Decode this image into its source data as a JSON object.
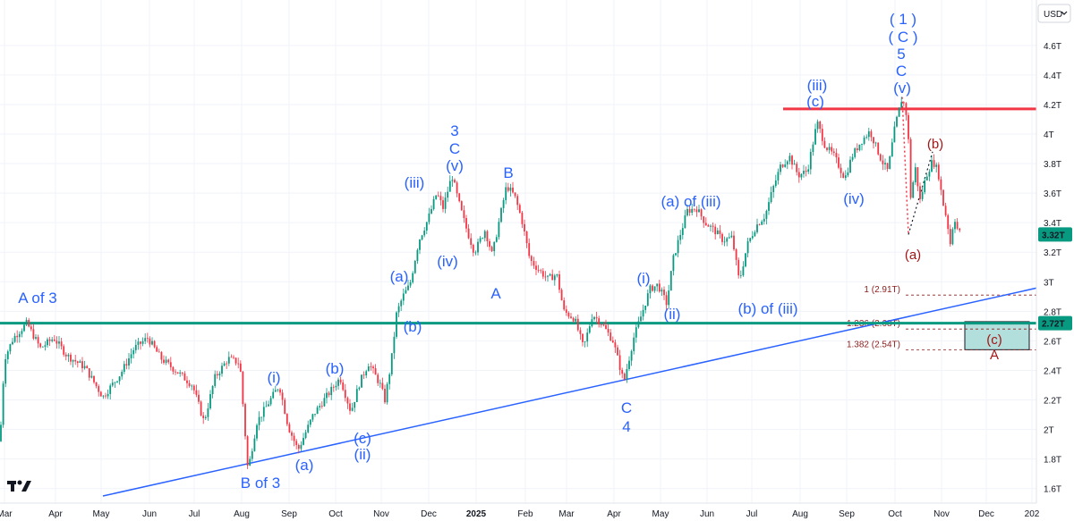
{
  "header": {
    "currency": "USD"
  },
  "chart_data": {
    "type": "candlestick",
    "y_axis": {
      "ticks": [
        "4.6T",
        "4.4T",
        "4.2T",
        "4T",
        "3.8T",
        "3.6T",
        "3.4T",
        "3.2T",
        "3T",
        "2.8T",
        "2.6T",
        "2.4T",
        "2.2T",
        "2T",
        "1.8T",
        "1.6T"
      ],
      "range": [
        1.55,
        4.75
      ],
      "scale": "linear"
    },
    "x_axis": {
      "ticks": [
        "Mar",
        "Apr",
        "May",
        "Jun",
        "Jul",
        "Aug",
        "Sep",
        "Oct",
        "Nov",
        "Dec",
        "2025",
        "Feb",
        "Mar",
        "Apr",
        "May",
        "Jun",
        "Jul",
        "Aug",
        "Sep",
        "Oct",
        "Nov",
        "Dec",
        "202"
      ]
    },
    "price_path": [
      [
        0,
        1.92
      ],
      [
        5,
        2.48
      ],
      [
        15,
        2.62
      ],
      [
        30,
        2.72
      ],
      [
        45,
        2.55
      ],
      [
        60,
        2.62
      ],
      [
        75,
        2.5
      ],
      [
        95,
        2.42
      ],
      [
        115,
        2.22
      ],
      [
        135,
        2.38
      ],
      [
        150,
        2.55
      ],
      [
        165,
        2.62
      ],
      [
        180,
        2.48
      ],
      [
        200,
        2.38
      ],
      [
        215,
        2.3
      ],
      [
        228,
        2.05
      ],
      [
        240,
        2.35
      ],
      [
        255,
        2.48
      ],
      [
        268,
        2.45
      ],
      [
        277,
        1.72
      ],
      [
        287,
        2.05
      ],
      [
        300,
        2.18
      ],
      [
        312,
        2.3
      ],
      [
        322,
        2.02
      ],
      [
        333,
        1.86
      ],
      [
        350,
        2.1
      ],
      [
        368,
        2.25
      ],
      [
        380,
        2.35
      ],
      [
        392,
        2.12
      ],
      [
        402,
        2.32
      ],
      [
        412,
        2.45
      ],
      [
        425,
        2.3
      ],
      [
        430,
        2.2
      ],
      [
        437,
        2.45
      ],
      [
        443,
        2.78
      ],
      [
        450,
        2.9
      ],
      [
        458,
        2.98
      ],
      [
        468,
        3.28
      ],
      [
        478,
        3.42
      ],
      [
        488,
        3.6
      ],
      [
        495,
        3.5
      ],
      [
        505,
        3.72
      ],
      [
        512,
        3.55
      ],
      [
        520,
        3.38
      ],
      [
        530,
        3.2
      ],
      [
        542,
        3.35
      ],
      [
        550,
        3.18
      ],
      [
        558,
        3.42
      ],
      [
        566,
        3.65
      ],
      [
        575,
        3.58
      ],
      [
        583,
        3.42
      ],
      [
        592,
        3.15
      ],
      [
        602,
        3.08
      ],
      [
        612,
        3.02
      ],
      [
        622,
        3.05
      ],
      [
        630,
        2.8
      ],
      [
        642,
        2.75
      ],
      [
        652,
        2.55
      ],
      [
        662,
        2.78
      ],
      [
        672,
        2.72
      ],
      [
        685,
        2.6
      ],
      [
        697,
        2.32
      ],
      [
        708,
        2.62
      ],
      [
        718,
        2.8
      ],
      [
        726,
        2.95
      ],
      [
        735,
        2.98
      ],
      [
        745,
        2.85
      ],
      [
        752,
        3.15
      ],
      [
        760,
        3.32
      ],
      [
        768,
        3.48
      ],
      [
        778,
        3.5
      ],
      [
        788,
        3.4
      ],
      [
        798,
        3.35
      ],
      [
        808,
        3.28
      ],
      [
        818,
        3.3
      ],
      [
        826,
        3.0
      ],
      [
        835,
        3.25
      ],
      [
        845,
        3.38
      ],
      [
        855,
        3.45
      ],
      [
        863,
        3.62
      ],
      [
        872,
        3.78
      ],
      [
        882,
        3.85
      ],
      [
        892,
        3.72
      ],
      [
        902,
        3.75
      ],
      [
        913,
        4.08
      ],
      [
        922,
        3.92
      ],
      [
        932,
        3.85
      ],
      [
        944,
        3.7
      ],
      [
        952,
        3.85
      ],
      [
        962,
        3.95
      ],
      [
        972,
        4.02
      ],
      [
        985,
        3.82
      ],
      [
        992,
        3.75
      ],
      [
        1000,
        4.05
      ],
      [
        1008,
        4.25
      ],
      [
        1014,
        4.1
      ],
      [
        1018,
        3.52
      ],
      [
        1022,
        3.8
      ],
      [
        1028,
        3.55
      ],
      [
        1035,
        3.72
      ],
      [
        1042,
        3.82
      ],
      [
        1048,
        3.75
      ],
      [
        1053,
        3.55
      ],
      [
        1058,
        3.42
      ],
      [
        1062,
        3.25
      ],
      [
        1066,
        3.45
      ],
      [
        1070,
        3.35
      ],
      [
        1074,
        3.32
      ]
    ],
    "last_price_label": "3.32T",
    "horizontal_levels": [
      {
        "label": "2.72T",
        "value": 2.72,
        "color": "#089981"
      },
      {
        "value": 4.17,
        "color": "#f23645"
      }
    ],
    "trendline": {
      "from": [
        115,
        1.55
      ],
      "to": [
        1160,
        2.96
      ],
      "color": "#2962ff"
    },
    "fib_levels": [
      {
        "label": "1 (2.91T)",
        "value": 2.91
      },
      {
        "label": "1.236 (2.68T)",
        "value": 2.68
      },
      {
        "label": "1.382 (2.54T)",
        "value": 2.54
      }
    ],
    "target_box": {
      "from": 2.54,
      "to": 2.73,
      "color": "#b2dfdb"
    },
    "annotations_blue": [
      "A of 3",
      "B of 3",
      "(a)",
      "(b)",
      "(c)",
      "(i)",
      "(ii)",
      "(a)",
      "(b)",
      "(iii)",
      "(iv)",
      "3",
      "C",
      "(v)",
      "B",
      "A",
      "C",
      "4",
      "(i)",
      "(ii)",
      "(a) of (iii)",
      "(b) of (iii)",
      "(iii)",
      "(c)",
      "(iv)",
      "( 1 )",
      "( C )",
      "5",
      "C",
      "(v)"
    ],
    "annotations_red": [
      "(a)",
      "(b)",
      "(c)",
      "A"
    ]
  }
}
